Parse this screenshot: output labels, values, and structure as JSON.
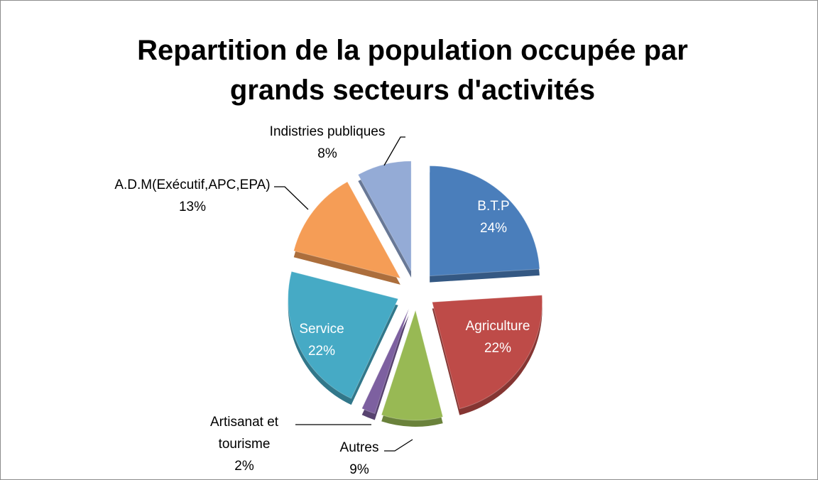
{
  "chart_data": {
    "type": "pie",
    "title": "Repartition de la population occupée par grands secteurs d'activités",
    "categories": [
      "B.T.P",
      "Agriculture",
      "Autres",
      "Artisanat et tourisme",
      "Service",
      "A.D.M(Exécutif,APC,EPA)",
      "Indistries publiques"
    ],
    "values": [
      24,
      22,
      9,
      2,
      22,
      13,
      8
    ],
    "value_labels": [
      "24%",
      "22%",
      "9%",
      "2%",
      "22%",
      "13%",
      "8%"
    ],
    "colors": [
      "#4a7ebb",
      "#be4b48",
      "#98b954",
      "#7d60a0",
      "#46aac5",
      "#f59d56",
      "#94abd6"
    ]
  }
}
